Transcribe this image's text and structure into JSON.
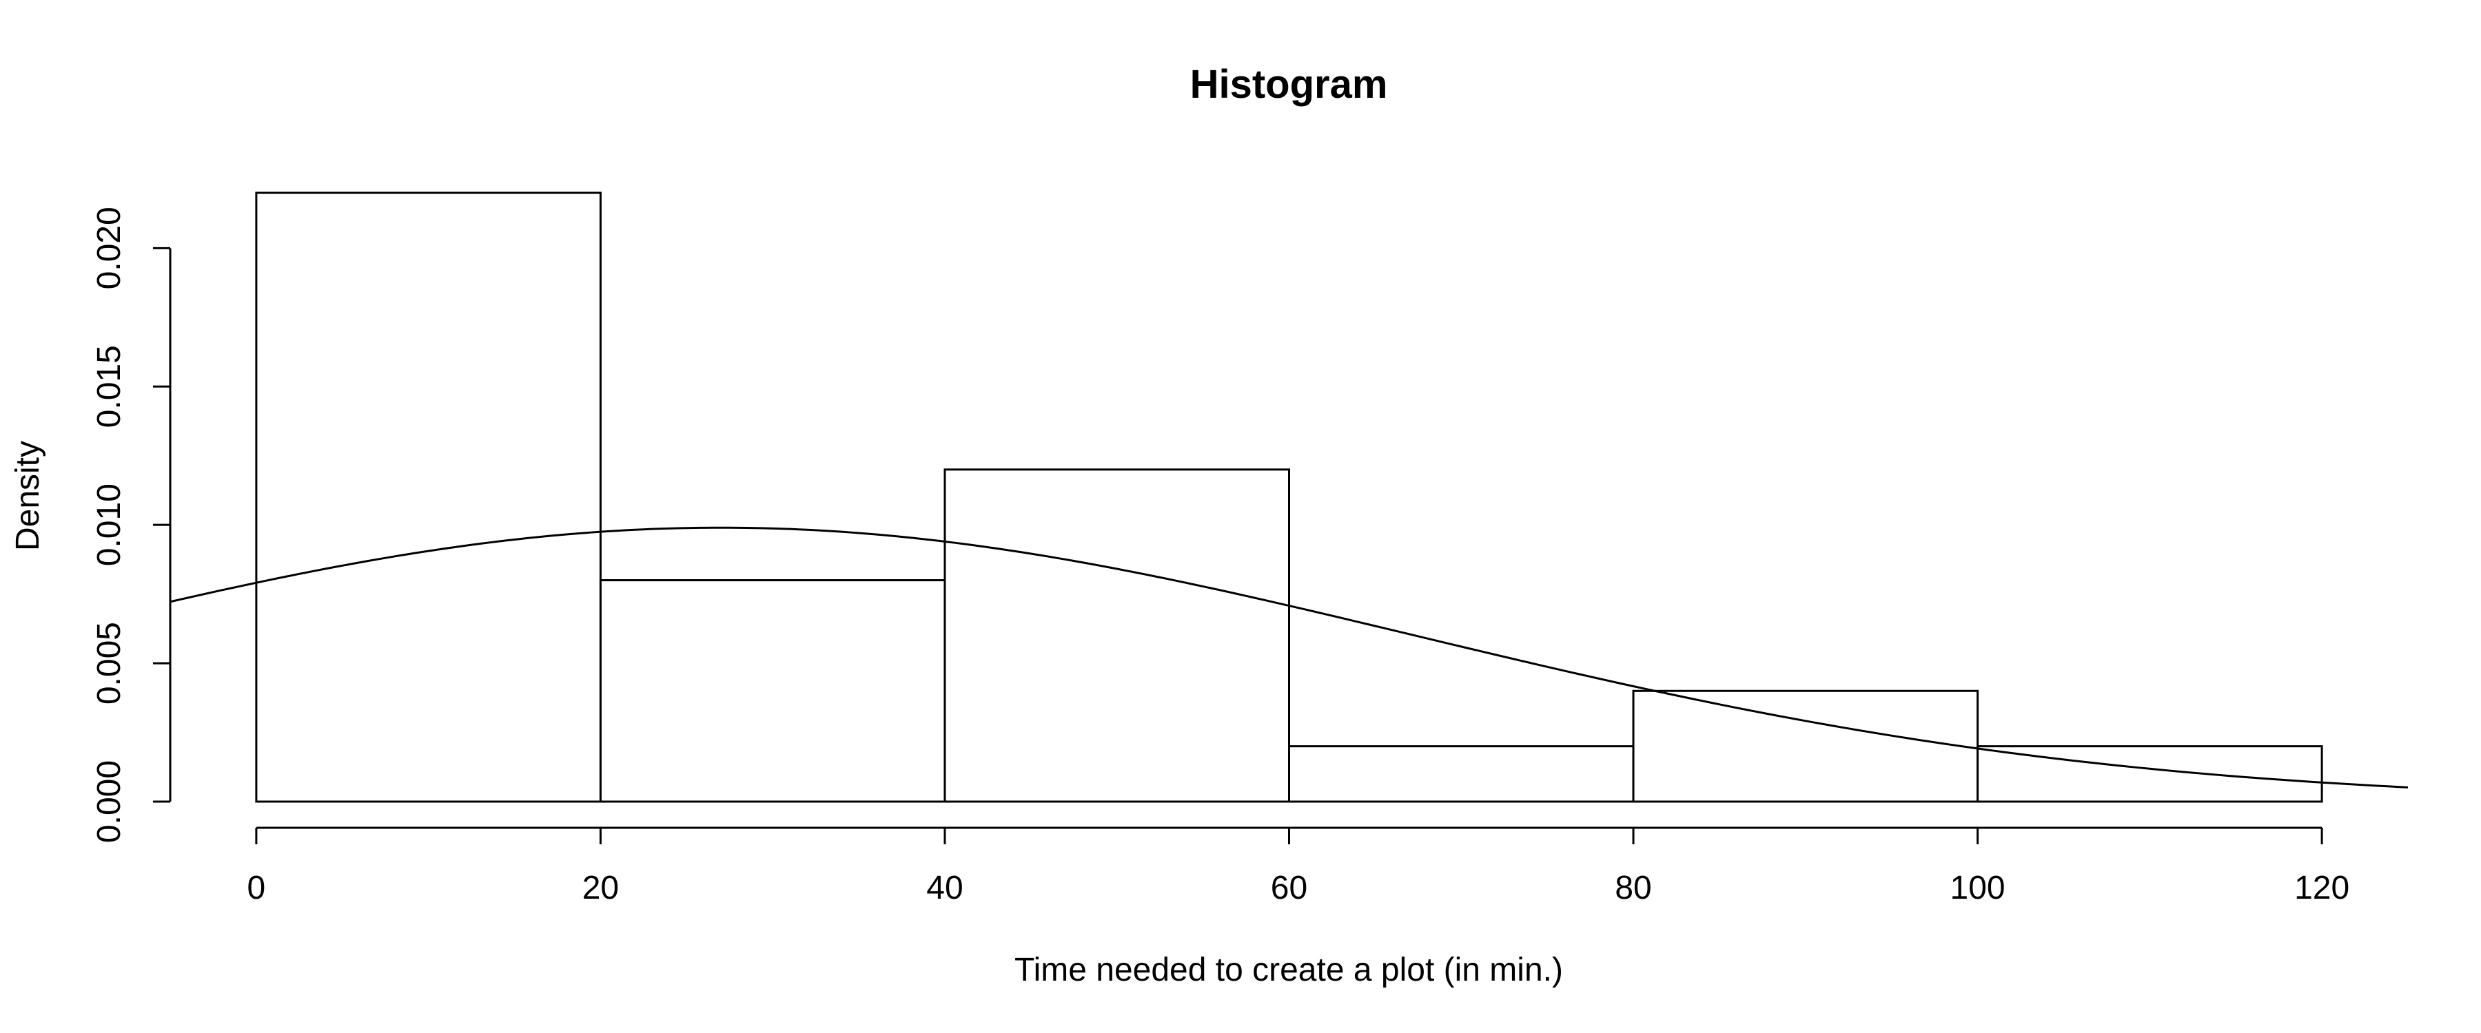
{
  "chart_data": {
    "type": "bar",
    "subtype": "histogram",
    "title": "Histogram",
    "xlabel": "Time needed to create a plot (in min.)",
    "ylabel": "Density",
    "bins": [
      {
        "start": 0,
        "end": 20,
        "density": 0.022
      },
      {
        "start": 20,
        "end": 40,
        "density": 0.008
      },
      {
        "start": 40,
        "end": 60,
        "density": 0.012
      },
      {
        "start": 60,
        "end": 80,
        "density": 0.002
      },
      {
        "start": 80,
        "end": 100,
        "density": 0.004
      },
      {
        "start": 100,
        "end": 120,
        "density": 0.002
      }
    ],
    "overlay_curve": {
      "type": "normal-density",
      "mean": 27,
      "sd": 40.3
    },
    "xlim": [
      -5,
      125
    ],
    "ylim": [
      0,
      0.022
    ],
    "x_ticks": [
      0,
      20,
      40,
      60,
      80,
      100,
      120
    ],
    "x_tick_labels": [
      "0",
      "20",
      "40",
      "60",
      "80",
      "100",
      "120"
    ],
    "y_ticks": [
      0.0,
      0.005,
      0.01,
      0.015,
      0.02
    ],
    "y_tick_labels": [
      "0.000",
      "0.005",
      "0.010",
      "0.015",
      "0.020"
    ],
    "grid": false,
    "legend": "none",
    "colors": {
      "bar_fill": "#ffffff",
      "stroke": "#000000",
      "background": "#ffffff"
    }
  }
}
